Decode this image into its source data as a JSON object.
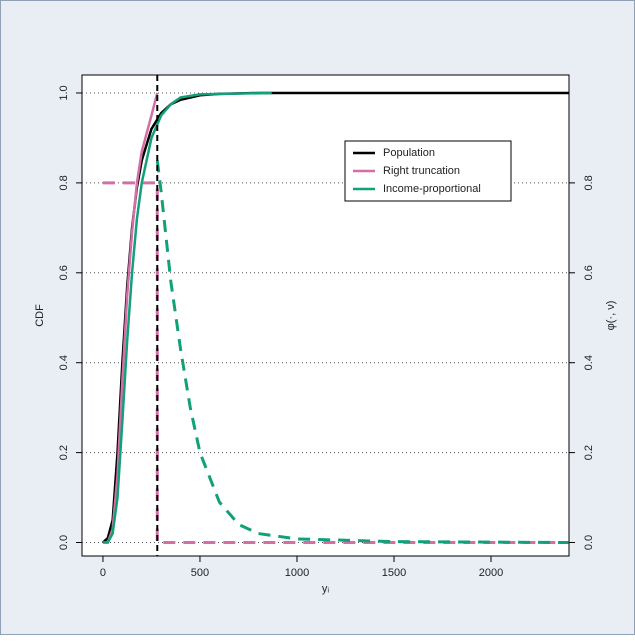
{
  "chart_data": {
    "type": "line",
    "xlabel": "yᵢ",
    "ylabel": "CDF",
    "y2label": "φ(·, ν)",
    "xlim": [
      -108,
      2402
    ],
    "ylim": [
      -0.03,
      1.04
    ],
    "y2lim": [
      -0.03,
      1.04
    ],
    "xticks": [
      0,
      500,
      1000,
      1500,
      2000
    ],
    "yticks": [
      {
        "value": 0,
        "label": "0.0"
      },
      {
        "value": 0.2,
        "label": "0.2"
      },
      {
        "value": 0.4,
        "label": "0.4"
      },
      {
        "value": 0.6,
        "label": "0.6"
      },
      {
        "value": 0.8,
        "label": "0.8"
      },
      {
        "value": 1,
        "label": "1.0"
      }
    ],
    "y2ticks": [
      {
        "value": 0,
        "label": "0.0"
      },
      {
        "value": 0.2,
        "label": "0.2"
      },
      {
        "value": 0.4,
        "label": "0.4"
      },
      {
        "value": 0.6,
        "label": "0.6"
      },
      {
        "value": 0.8,
        "label": "0.8"
      }
    ],
    "grid": true,
    "legend": "upper right",
    "vline": 280,
    "series": [
      {
        "name": "Population",
        "color": "#000000",
        "x": [
          0,
          25,
          50,
          75,
          100,
          125,
          150,
          175,
          200,
          250,
          300,
          350,
          400,
          500,
          600,
          800,
          1000,
          1500,
          2400
        ],
        "values": [
          0,
          0.01,
          0.05,
          0.2,
          0.4,
          0.57,
          0.7,
          0.79,
          0.85,
          0.92,
          0.955,
          0.975,
          0.985,
          0.995,
          0.998,
          1,
          1,
          1,
          1
        ]
      },
      {
        "name": "Right truncation",
        "color": "#d36fa6",
        "x": [
          0,
          25,
          50,
          75,
          100,
          125,
          150,
          175,
          200,
          250,
          280
        ],
        "values": [
          0,
          0,
          0.03,
          0.15,
          0.36,
          0.55,
          0.69,
          0.8,
          0.87,
          0.95,
          1
        ]
      },
      {
        "name": "Income-proportional",
        "color": "#12a079",
        "x": [
          0,
          25,
          50,
          75,
          100,
          125,
          150,
          175,
          200,
          250,
          300,
          350,
          400,
          500,
          870
        ],
        "values": [
          0,
          0,
          0.02,
          0.1,
          0.27,
          0.45,
          0.6,
          0.72,
          0.8,
          0.9,
          0.95,
          0.975,
          0.99,
          0.997,
          1
        ]
      },
      {
        "color": "#d36fa6",
        "axis": "y2",
        "dashed": true,
        "x": [
          0,
          280,
          280,
          2400
        ],
        "values": [
          0.8,
          0.8,
          0,
          0
        ]
      },
      {
        "color": "#12a079",
        "axis": "y2",
        "dashed": true,
        "x": [
          280,
          300,
          350,
          400,
          450,
          500,
          600,
          700,
          800,
          1000,
          1500,
          2400
        ],
        "values": [
          0.85,
          0.78,
          0.58,
          0.43,
          0.3,
          0.2,
          0.09,
          0.04,
          0.02,
          0.008,
          0.002,
          0
        ]
      }
    ]
  }
}
